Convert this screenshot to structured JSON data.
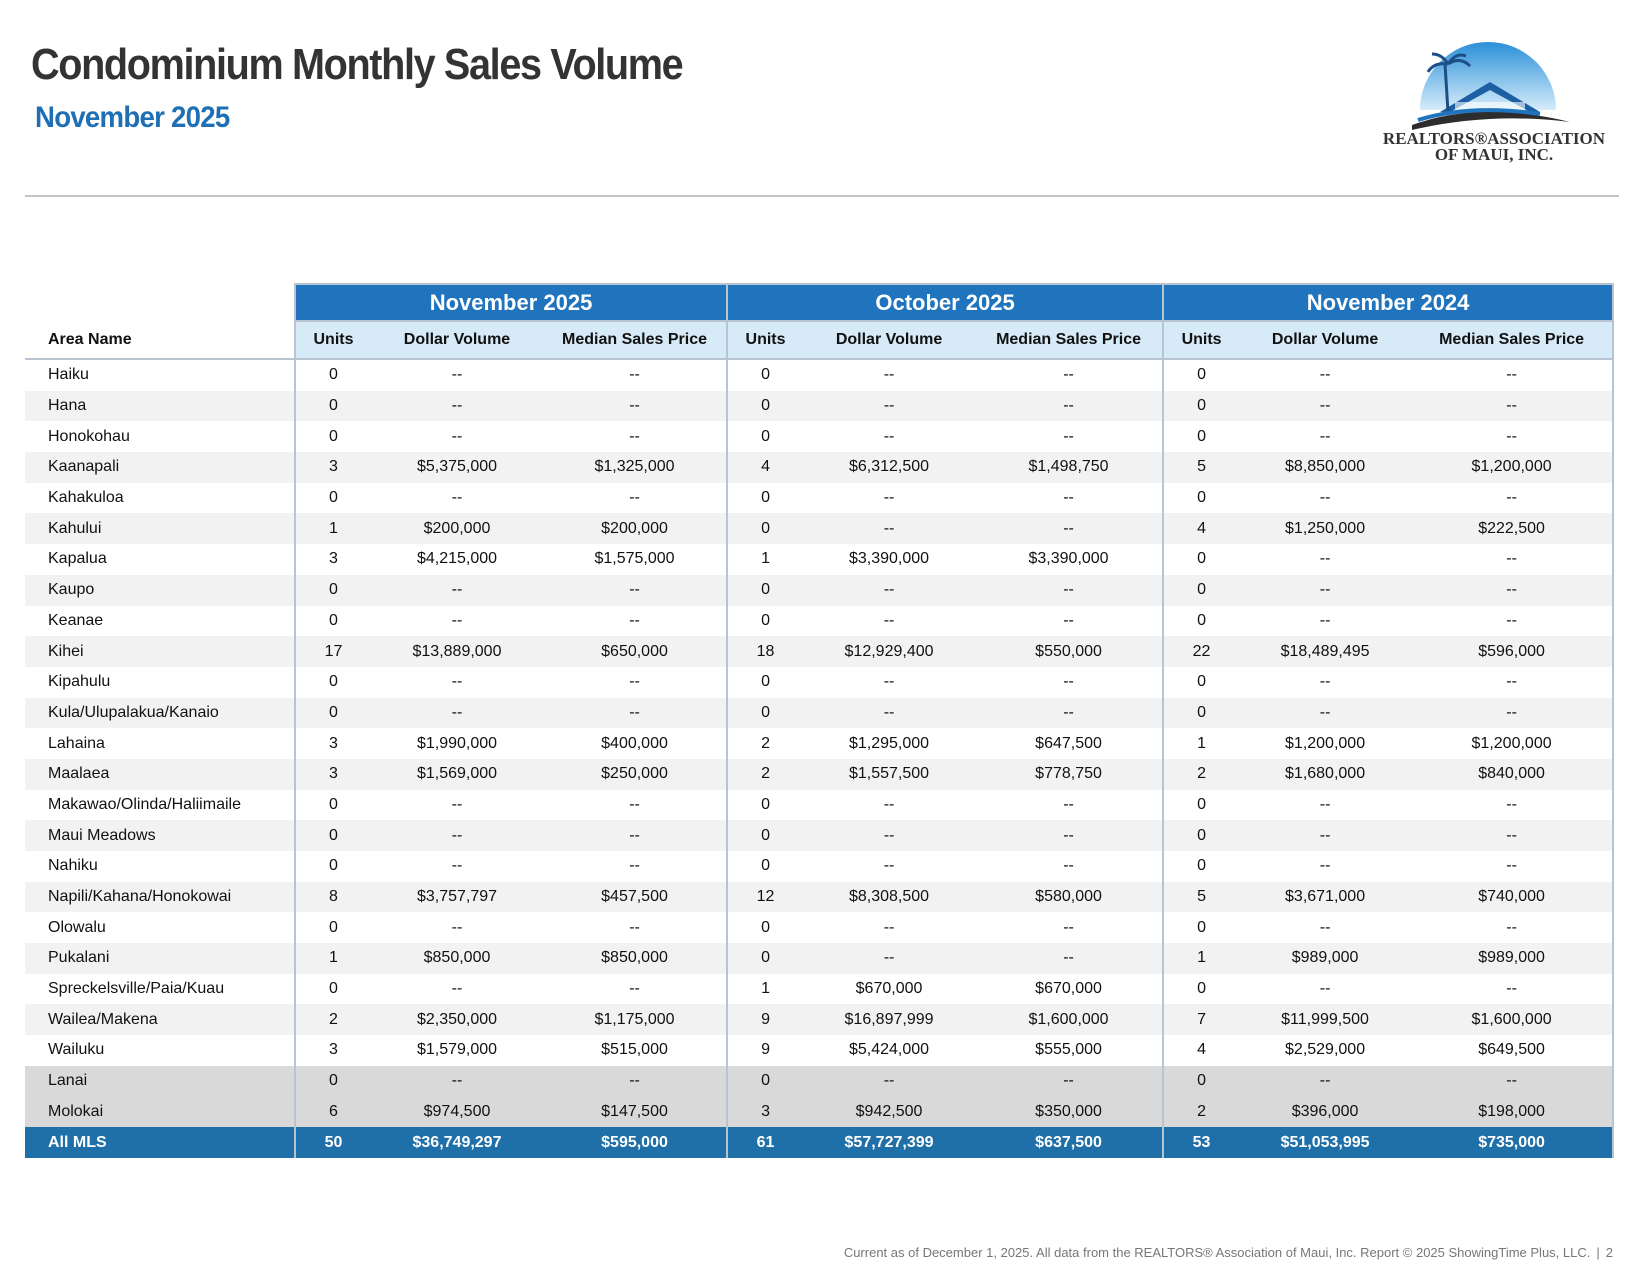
{
  "header": {
    "title": "Condominium Monthly Sales Volume",
    "subtitle": "November 2025"
  },
  "logo": {
    "line1": "REALTORS®ASSOCIATION",
    "line2": "OF MAUI, INC."
  },
  "table": {
    "area_header": "Area Name",
    "groups": [
      "November 2025",
      "October 2025",
      "November 2024"
    ],
    "subheaders": [
      "Units",
      "Dollar Volume",
      "Median Sales Price",
      "Units",
      "Dollar Volume",
      "Median Sales Price",
      "Units",
      "Dollar Volume",
      "Median Sales Price"
    ],
    "rows": [
      [
        "Haiku",
        0,
        "--",
        "--",
        0,
        "--",
        "--",
        0,
        "--",
        "--"
      ],
      [
        "Hana",
        0,
        "--",
        "--",
        0,
        "--",
        "--",
        0,
        "--",
        "--"
      ],
      [
        "Honokohau",
        0,
        "--",
        "--",
        0,
        "--",
        "--",
        0,
        "--",
        "--"
      ],
      [
        "Kaanapali",
        3,
        "$5,375,000",
        "$1,325,000",
        4,
        "$6,312,500",
        "$1,498,750",
        5,
        "$8,850,000",
        "$1,200,000"
      ],
      [
        "Kahakuloa",
        0,
        "--",
        "--",
        0,
        "--",
        "--",
        0,
        "--",
        "--"
      ],
      [
        "Kahului",
        1,
        "$200,000",
        "$200,000",
        0,
        "--",
        "--",
        4,
        "$1,250,000",
        "$222,500"
      ],
      [
        "Kapalua",
        3,
        "$4,215,000",
        "$1,575,000",
        1,
        "$3,390,000",
        "$3,390,000",
        0,
        "--",
        "--"
      ],
      [
        "Kaupo",
        0,
        "--",
        "--",
        0,
        "--",
        "--",
        0,
        "--",
        "--"
      ],
      [
        "Keanae",
        0,
        "--",
        "--",
        0,
        "--",
        "--",
        0,
        "--",
        "--"
      ],
      [
        "Kihei",
        17,
        "$13,889,000",
        "$650,000",
        18,
        "$12,929,400",
        "$550,000",
        22,
        "$18,489,495",
        "$596,000"
      ],
      [
        "Kipahulu",
        0,
        "--",
        "--",
        0,
        "--",
        "--",
        0,
        "--",
        "--"
      ],
      [
        "Kula/Ulupalakua/Kanaio",
        0,
        "--",
        "--",
        0,
        "--",
        "--",
        0,
        "--",
        "--"
      ],
      [
        "Lahaina",
        3,
        "$1,990,000",
        "$400,000",
        2,
        "$1,295,000",
        "$647,500",
        1,
        "$1,200,000",
        "$1,200,000"
      ],
      [
        "Maalaea",
        3,
        "$1,569,000",
        "$250,000",
        2,
        "$1,557,500",
        "$778,750",
        2,
        "$1,680,000",
        "$840,000"
      ],
      [
        "Makawao/Olinda/Haliimaile",
        0,
        "--",
        "--",
        0,
        "--",
        "--",
        0,
        "--",
        "--"
      ],
      [
        "Maui Meadows",
        0,
        "--",
        "--",
        0,
        "--",
        "--",
        0,
        "--",
        "--"
      ],
      [
        "Nahiku",
        0,
        "--",
        "--",
        0,
        "--",
        "--",
        0,
        "--",
        "--"
      ],
      [
        "Napili/Kahana/Honokowai",
        8,
        "$3,757,797",
        "$457,500",
        12,
        "$8,308,500",
        "$580,000",
        5,
        "$3,671,000",
        "$740,000"
      ],
      [
        "Olowalu",
        0,
        "--",
        "--",
        0,
        "--",
        "--",
        0,
        "--",
        "--"
      ],
      [
        "Pukalani",
        1,
        "$850,000",
        "$850,000",
        0,
        "--",
        "--",
        1,
        "$989,000",
        "$989,000"
      ],
      [
        "Spreckelsville/Paia/Kuau",
        0,
        "--",
        "--",
        1,
        "$670,000",
        "$670,000",
        0,
        "--",
        "--"
      ],
      [
        "Wailea/Makena",
        2,
        "$2,350,000",
        "$1,175,000",
        9,
        "$16,897,999",
        "$1,600,000",
        7,
        "$11,999,500",
        "$1,600,000"
      ],
      [
        "Wailuku",
        3,
        "$1,579,000",
        "$515,000",
        9,
        "$5,424,000",
        "$555,000",
        4,
        "$2,529,000",
        "$649,500"
      ]
    ],
    "island_rows": [
      [
        "Lanai",
        0,
        "--",
        "--",
        0,
        "--",
        "--",
        0,
        "--",
        "--"
      ],
      [
        "Molokai",
        6,
        "$974,500",
        "$147,500",
        3,
        "$942,500",
        "$350,000",
        2,
        "$396,000",
        "$198,000"
      ]
    ],
    "total_row": [
      "All MLS",
      50,
      "$36,749,297",
      "$595,000",
      61,
      "$57,727,399",
      "$637,500",
      53,
      "$51,053,995",
      "$735,000"
    ]
  },
  "footer": {
    "note": "Current as of December 1, 2025. All data from the REALTORS® Association of Maui, Inc. Report © 2025 ShowingTime Plus, LLC.",
    "separator": "|",
    "page_number": "2"
  }
}
